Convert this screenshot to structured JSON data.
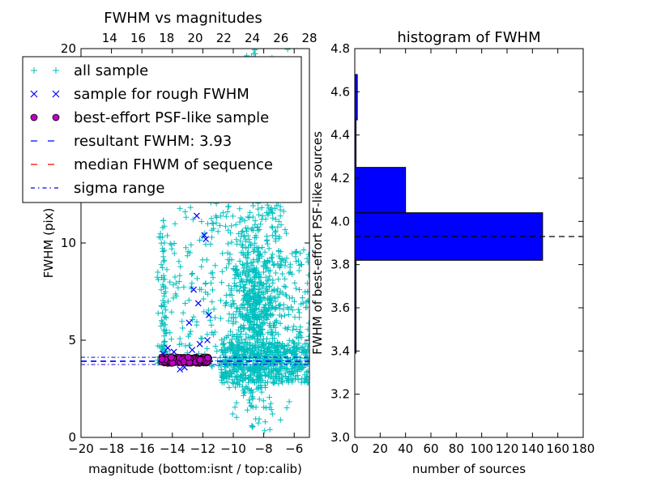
{
  "colors": {
    "all_sample": "#00bfbf",
    "rough_sample": "#0000ff",
    "psf_sample": "#bf00bf",
    "resultant_line": "#0000ff",
    "median_line": "#ff0000",
    "sigma_line": "#0000ff",
    "hist_bar": "#0000ff"
  },
  "chart_data": [
    {
      "type": "scatter",
      "title": "FWHM vs magnitudes",
      "xlabel": "magnitude (bottom:isnt / top:calib)",
      "ylabel": "FWHM (pix)",
      "xlim": [
        -20,
        -5
      ],
      "ylim": [
        0,
        20
      ],
      "x_ticks": [
        "−20",
        "−18",
        "−16",
        "−14",
        "−12",
        "−10",
        "−8",
        "−6"
      ],
      "x_tick_values": [
        -20,
        -18,
        -16,
        -14,
        -12,
        -10,
        -8,
        -6
      ],
      "top_xlim": [
        12,
        28
      ],
      "top_x_ticks": [
        "14",
        "16",
        "18",
        "20",
        "22",
        "24",
        "26",
        "28"
      ],
      "top_x_tick_values": [
        14,
        16,
        18,
        20,
        22,
        24,
        26,
        28
      ],
      "y_ticks": [
        "0",
        "5",
        "10"
      ],
      "y_tick_values": [
        0,
        5,
        10
      ],
      "legend_location": "upper-left",
      "legend": {
        "all_sample": "all sample",
        "rough_sample": "sample for rough FWHM",
        "psf_sample": "best-effort PSF-like sample",
        "resultant": "resultant FWHM: 3.93",
        "median": "median FHWM of sequence",
        "sigma": "sigma range"
      },
      "resultant_fwhm": 3.93,
      "median_fwhm": 3.9,
      "sigma_range": [
        3.75,
        4.12
      ],
      "series": [
        {
          "name": "sample for rough FWHM",
          "marker": "x",
          "points": [
            [
              -14.6,
              4.3
            ],
            [
              -14.3,
              4.6
            ],
            [
              -13.9,
              4.4
            ],
            [
              -13.5,
              3.5
            ],
            [
              -13.2,
              3.6
            ],
            [
              -12.9,
              5.9
            ],
            [
              -12.7,
              4.5
            ],
            [
              -12.6,
              7.6
            ],
            [
              -12.4,
              11.4
            ],
            [
              -12.2,
              4.8
            ],
            [
              -11.9,
              10.4
            ],
            [
              -11.8,
              10.2
            ],
            [
              -11.6,
              6.3
            ],
            [
              -11.7,
              5.0
            ],
            [
              -13.7,
              4.1
            ],
            [
              -14.1,
              3.9
            ],
            [
              -12.3,
              6.9
            ]
          ]
        },
        {
          "name": "best-effort PSF-like sample",
          "marker": "o",
          "x_range": [
            -14.7,
            -11.6
          ],
          "y_range": [
            3.82,
            4.12
          ],
          "count": 175
        }
      ]
    },
    {
      "type": "bar",
      "orientation": "horizontal",
      "title": "histogram of FWHM",
      "xlabel": "number of sources",
      "ylabel": "FWHM of best-effort PSF-like sources",
      "xlim": [
        0,
        180
      ],
      "ylim": [
        3.0,
        4.8
      ],
      "x_ticks": [
        "0",
        "20",
        "40",
        "60",
        "80",
        "100",
        "120",
        "140",
        "160",
        "180"
      ],
      "x_tick_values": [
        0,
        20,
        40,
        60,
        80,
        100,
        120,
        140,
        160,
        180
      ],
      "y_ticks": [
        "3.0",
        "3.2",
        "3.4",
        "3.6",
        "3.8",
        "4.0",
        "4.2",
        "4.4",
        "4.6",
        "4.8"
      ],
      "y_tick_values": [
        3.0,
        3.2,
        3.4,
        3.6,
        3.8,
        4.0,
        4.2,
        4.4,
        4.6,
        4.8
      ],
      "bins": [
        {
          "y0": 3.39,
          "y1": 3.82,
          "count": 1
        },
        {
          "y0": 3.82,
          "y1": 4.04,
          "count": 148
        },
        {
          "y0": 4.04,
          "y1": 4.25,
          "count": 40
        },
        {
          "y0": 4.25,
          "y1": 4.47,
          "count": 1
        },
        {
          "y0": 4.47,
          "y1": 4.68,
          "count": 2
        }
      ],
      "reference_line": 3.93
    }
  ]
}
